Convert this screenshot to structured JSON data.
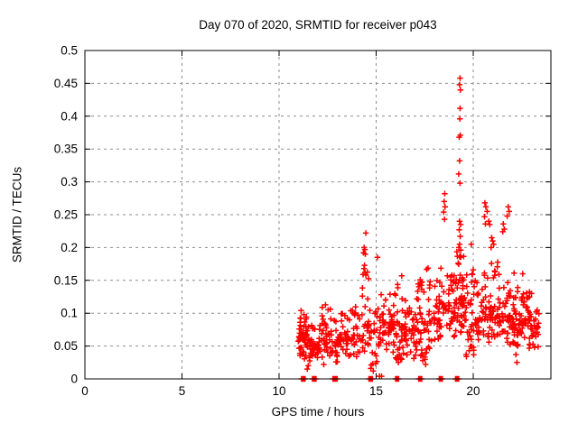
{
  "page": {
    "background": "#ffffff",
    "text_color": "#000000"
  },
  "chart_data": {
    "type": "scatter",
    "title": "Day 070 of 2020, SRMTID for receiver p043",
    "xlabel": "GPS time / hours",
    "ylabel": "SRMTID / TECUs",
    "xlim": [
      0,
      24
    ],
    "ylim": [
      0,
      0.5
    ],
    "x_ticks": [
      0,
      5,
      10,
      15,
      20
    ],
    "y_ticks": [
      0,
      0.05,
      0.1,
      0.15,
      0.2,
      0.25,
      0.3,
      0.35,
      0.4,
      0.45,
      0.5
    ],
    "grid": "on",
    "grid_style": "dashed",
    "grid_color": "#8c8c8c",
    "border_color": "#000000",
    "marker": "plus",
    "marker_color": "#ff0000",
    "legend": "none",
    "data_time_range_hours": [
      10.95,
      23.4
    ],
    "max_value": 0.458,
    "max_value_hour": 19.32,
    "clusters": [
      {
        "x0": 10.95,
        "x1": 11.1,
        "n": 7,
        "ymin": 0.045,
        "ymax": 0.085,
        "mode": 0.06
      },
      {
        "x0": 11.05,
        "x1": 11.4,
        "n": 40,
        "ymin": 0.03,
        "ymax": 0.105,
        "mode": 0.065
      },
      {
        "x0": 11.4,
        "x1": 11.7,
        "n": 25,
        "ymin": 0.025,
        "ymax": 0.095,
        "mode": 0.055
      },
      {
        "x0": 11.7,
        "x1": 12.1,
        "n": 24,
        "ymin": 0.03,
        "ymax": 0.08,
        "mode": 0.05
      },
      {
        "x0": 12.1,
        "x1": 12.65,
        "n": 34,
        "ymin": 0.03,
        "ymax": 0.115,
        "mode": 0.06
      },
      {
        "x0": 12.65,
        "x1": 13.1,
        "n": 28,
        "ymin": 0.025,
        "ymax": 0.095,
        "mode": 0.055
      },
      {
        "x0": 13.1,
        "x1": 13.6,
        "n": 30,
        "ymin": 0.03,
        "ymax": 0.1,
        "mode": 0.06
      },
      {
        "x0": 13.6,
        "x1": 14.2,
        "n": 30,
        "ymin": 0.03,
        "ymax": 0.11,
        "mode": 0.065
      },
      {
        "x0": 14.2,
        "x1": 14.65,
        "n": 26,
        "ymin": 0.04,
        "ymax": 0.165,
        "mode": 0.08
      },
      {
        "x0": 14.65,
        "x1": 15.05,
        "n": 20,
        "ymin": 0.02,
        "ymax": 0.12,
        "mode": 0.06
      },
      {
        "x0": 15.05,
        "x1": 15.55,
        "n": 30,
        "ymin": 0.04,
        "ymax": 0.13,
        "mode": 0.07
      },
      {
        "x0": 15.55,
        "x1": 16.0,
        "n": 30,
        "ymin": 0.04,
        "ymax": 0.135,
        "mode": 0.08
      },
      {
        "x0": 16.0,
        "x1": 16.5,
        "n": 40,
        "ymin": 0.025,
        "ymax": 0.16,
        "mode": 0.08
      },
      {
        "x0": 16.5,
        "x1": 17.0,
        "n": 30,
        "ymin": 0.03,
        "ymax": 0.12,
        "mode": 0.07
      },
      {
        "x0": 17.0,
        "x1": 17.6,
        "n": 45,
        "ymin": 0.025,
        "ymax": 0.155,
        "mode": 0.075
      },
      {
        "x0": 17.6,
        "x1": 18.35,
        "n": 48,
        "ymin": 0.04,
        "ymax": 0.185,
        "mode": 0.09
      },
      {
        "x0": 18.35,
        "x1": 18.75,
        "n": 20,
        "ymin": 0.075,
        "ymax": 0.16,
        "mode": 0.11
      },
      {
        "x0": 18.75,
        "x1": 19.15,
        "n": 32,
        "ymin": 0.06,
        "ymax": 0.16,
        "mode": 0.1
      },
      {
        "x0": 19.15,
        "x1": 19.55,
        "n": 45,
        "ymin": 0.07,
        "ymax": 0.195,
        "mode": 0.12
      },
      {
        "x0": 19.55,
        "x1": 20.1,
        "n": 36,
        "ymin": 0.03,
        "ymax": 0.175,
        "mode": 0.09
      },
      {
        "x0": 20.1,
        "x1": 20.55,
        "n": 30,
        "ymin": 0.05,
        "ymax": 0.155,
        "mode": 0.09
      },
      {
        "x0": 20.55,
        "x1": 21.1,
        "n": 38,
        "ymin": 0.055,
        "ymax": 0.19,
        "mode": 0.1
      },
      {
        "x0": 21.1,
        "x1": 21.6,
        "n": 34,
        "ymin": 0.06,
        "ymax": 0.19,
        "mode": 0.095
      },
      {
        "x0": 21.6,
        "x1": 22.3,
        "n": 62,
        "ymin": 0.05,
        "ymax": 0.165,
        "mode": 0.09
      },
      {
        "x0": 22.3,
        "x1": 22.9,
        "n": 46,
        "ymin": 0.045,
        "ymax": 0.135,
        "mode": 0.085
      },
      {
        "x0": 22.9,
        "x1": 23.4,
        "n": 30,
        "ymin": 0.045,
        "ymax": 0.115,
        "mode": 0.08
      }
    ],
    "baseline_clusters": [
      {
        "x": 11.25,
        "halfwidth": 0.09,
        "n": 14
      },
      {
        "x": 11.81,
        "halfwidth": 0.09,
        "n": 14
      },
      {
        "x": 12.88,
        "halfwidth": 0.11,
        "n": 16
      },
      {
        "x": 14.72,
        "halfwidth": 0.09,
        "n": 14
      },
      {
        "x": 16.08,
        "halfwidth": 0.08,
        "n": 13
      },
      {
        "x": 17.27,
        "halfwidth": 0.08,
        "n": 13
      },
      {
        "x": 18.33,
        "halfwidth": 0.08,
        "n": 13
      },
      {
        "x": 19.17,
        "halfwidth": 0.08,
        "n": 13
      }
    ],
    "outliers": [
      [
        19.32,
        0.458
      ],
      [
        19.3,
        0.448
      ],
      [
        19.34,
        0.44
      ],
      [
        19.32,
        0.412
      ],
      [
        19.31,
        0.396
      ],
      [
        19.33,
        0.371
      ],
      [
        19.28,
        0.368
      ],
      [
        19.3,
        0.332
      ],
      [
        19.25,
        0.312
      ],
      [
        19.32,
        0.298
      ],
      [
        18.53,
        0.282
      ],
      [
        18.5,
        0.27
      ],
      [
        18.55,
        0.262
      ],
      [
        18.48,
        0.254
      ],
      [
        18.52,
        0.243
      ],
      [
        19.3,
        0.24
      ],
      [
        19.35,
        0.235
      ],
      [
        19.28,
        0.227
      ],
      [
        19.33,
        0.217
      ],
      [
        19.3,
        0.205
      ],
      [
        19.26,
        0.2
      ],
      [
        19.36,
        0.196
      ],
      [
        19.3,
        0.186
      ],
      [
        14.47,
        0.222
      ],
      [
        14.38,
        0.2
      ],
      [
        14.42,
        0.197
      ],
      [
        14.35,
        0.192
      ],
      [
        14.44,
        0.19
      ],
      [
        14.4,
        0.173
      ],
      [
        14.37,
        0.168
      ],
      [
        14.43,
        0.162
      ],
      [
        14.47,
        0.158
      ],
      [
        15.07,
        0.185
      ],
      [
        17.27,
        0.151
      ],
      [
        19.9,
        0.205
      ],
      [
        20.6,
        0.268
      ],
      [
        20.65,
        0.262
      ],
      [
        20.72,
        0.255
      ],
      [
        20.58,
        0.247
      ],
      [
        20.8,
        0.24
      ],
      [
        20.63,
        0.236
      ],
      [
        20.85,
        0.235
      ],
      [
        20.95,
        0.215
      ],
      [
        21.0,
        0.21
      ],
      [
        21.05,
        0.205
      ],
      [
        20.92,
        0.2
      ],
      [
        21.55,
        0.236
      ],
      [
        21.6,
        0.228
      ],
      [
        21.52,
        0.224
      ],
      [
        21.8,
        0.262
      ],
      [
        21.85,
        0.255
      ],
      [
        21.75,
        0.248
      ],
      [
        22.55,
        0.16
      ],
      [
        22.2,
        0.037
      ],
      [
        22.25,
        0.025
      ],
      [
        15.17,
        0.004
      ],
      [
        15.28,
        0.004
      ],
      [
        14.72,
        0.016
      ],
      [
        14.85,
        0.012
      ],
      [
        16.15,
        0.025
      ],
      [
        17.4,
        0.028
      ],
      [
        17.55,
        0.022
      ],
      [
        11.5,
        0.02
      ],
      [
        11.45,
        0.015
      ],
      [
        12.3,
        0.022
      ],
      [
        23.0,
        0.13
      ]
    ]
  }
}
